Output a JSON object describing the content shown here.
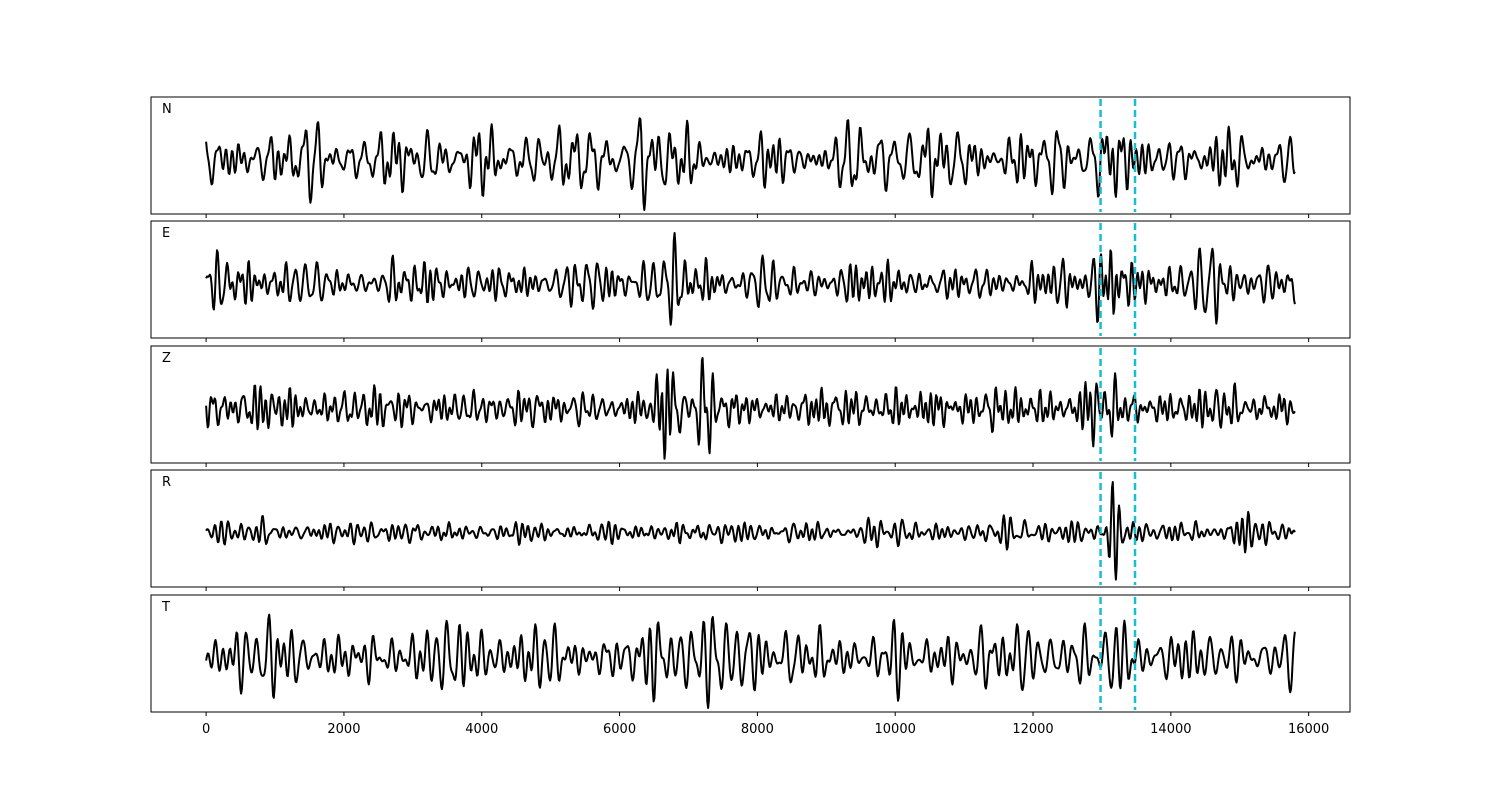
{
  "chart_data": {
    "type": "line",
    "title": "",
    "xlabel": "",
    "ylabel": "",
    "xlim": [
      -800,
      16600
    ],
    "x_ticks": [
      0,
      2000,
      4000,
      6000,
      8000,
      10000,
      12000,
      14000,
      16000
    ],
    "x_tick_labels": [
      "0",
      "2000",
      "4000",
      "6000",
      "8000",
      "10000",
      "12000",
      "14000",
      "16000"
    ],
    "x_range": [
      0,
      15800
    ],
    "grid": false,
    "legend": false,
    "line_color": "#000000",
    "marker_color": "#17becf",
    "vertical_markers": [
      12980,
      13480
    ],
    "panels": [
      {
        "label": "N",
        "seed": 11,
        "base_amp": 0.45,
        "events": [
          [
            6450,
            0.25
          ],
          [
            12950,
            0.25
          ],
          [
            13150,
            0.75
          ]
        ]
      },
      {
        "label": "E",
        "seed": 23,
        "base_amp": 0.18,
        "events": [
          [
            6600,
            0.12
          ],
          [
            8200,
            0.1
          ],
          [
            13100,
            0.6
          ],
          [
            14500,
            0.45
          ]
        ]
      },
      {
        "label": "Z",
        "seed": 37,
        "base_amp": 0.28,
        "events": [
          [
            6700,
            0.75
          ],
          [
            7300,
            0.5
          ],
          [
            12900,
            0.2
          ]
        ]
      },
      {
        "label": "R",
        "seed": 41,
        "base_amp": 0.16,
        "events": [
          [
            6800,
            0.12
          ],
          [
            11800,
            0.15
          ],
          [
            13200,
            0.7
          ],
          [
            15000,
            0.3
          ]
        ]
      },
      {
        "label": "T",
        "seed": 53,
        "base_amp": 0.5,
        "events": [
          [
            6500,
            0.3
          ],
          [
            8500,
            0.25
          ],
          [
            13200,
            0.4
          ]
        ]
      }
    ]
  }
}
